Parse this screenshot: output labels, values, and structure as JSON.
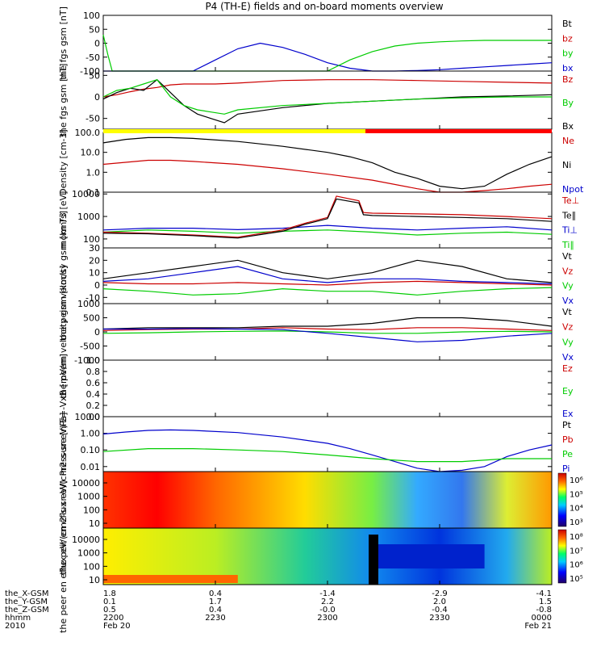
{
  "title": "P4 (TH-E) fields and on-board moments overview",
  "ephemeris": {
    "rows": [
      {
        "label": "the_X-GSM",
        "values": [
          "1.8",
          "0.4",
          "-1.4",
          "-2.9",
          "-4.1"
        ]
      },
      {
        "label": "the_Y-GSM",
        "values": [
          "0.1",
          "1.7",
          "2.2",
          "2.0",
          "1.5"
        ]
      },
      {
        "label": "the_Z-GSM",
        "values": [
          "0.5",
          "0.4",
          "-0.0",
          "-0.4",
          "-0.8"
        ]
      },
      {
        "label": "hhmm",
        "values": [
          "2200",
          "2230",
          "2300",
          "2330",
          "0000"
        ]
      },
      {
        "label": "2010",
        "values": [
          "Feb 20",
          "",
          "",
          "",
          "Feb 21"
        ]
      }
    ]
  },
  "colors": {
    "black": "#000000",
    "red": "#cc0000",
    "green": "#00cc00",
    "blue": "#0000cc",
    "yellow": "#ffff00",
    "redbar": "#ff0000"
  },
  "chart_data": [
    {
      "type": "line",
      "ylabel": "the fgs gsm [nT]",
      "ylim": [
        -100,
        100
      ],
      "ticks": [
        "100",
        "50",
        "0",
        "-50",
        "-100"
      ],
      "tickvalues": [
        100,
        50,
        0,
        -50,
        -100
      ],
      "legend": [
        {
          "name": "Bt",
          "color": "#000000"
        },
        {
          "name": "bz",
          "color": "#cc0000"
        },
        {
          "name": "by",
          "color": "#00cc00"
        },
        {
          "name": "bx",
          "color": "#0000cc"
        }
      ],
      "series": [
        {
          "name": "bx",
          "color": "#0000cc",
          "x": [
            0,
            5,
            10,
            15,
            20,
            25,
            30,
            35,
            40,
            45,
            50,
            55,
            60,
            65,
            70,
            75,
            80,
            85,
            90,
            95,
            100
          ],
          "y": [
            -100,
            -100,
            -100,
            -100,
            -100,
            -60,
            -20,
            0,
            -15,
            -40,
            -70,
            -90,
            -100,
            -100,
            -98,
            -95,
            -90,
            -85,
            -80,
            -75,
            -70
          ]
        },
        {
          "name": "by",
          "color": "#00cc00",
          "x": [
            0,
            1,
            2,
            3,
            10,
            20,
            30,
            40,
            50,
            55,
            60,
            65,
            70,
            75,
            80,
            85,
            90,
            95,
            100
          ],
          "y": [
            30,
            -40,
            -100,
            -100,
            -100,
            -100,
            -100,
            -100,
            -100,
            -60,
            -30,
            -10,
            0,
            5,
            8,
            10,
            10,
            10,
            10
          ]
        }
      ]
    },
    {
      "type": "line",
      "ylabel": "the fgs gsm [nT]",
      "ylim": [
        -75,
        60
      ],
      "ticks": [
        "50",
        "0",
        "-50"
      ],
      "tickvalues": [
        50,
        0,
        -50
      ],
      "legend": [
        {
          "name": "Bz",
          "color": "#cc0000"
        },
        {
          "name": "By",
          "color": "#00cc00"
        },
        {
          "name": "Bx",
          "color": "#000000"
        }
      ],
      "series": [
        {
          "name": "Bz",
          "color": "#cc0000",
          "x": [
            0,
            3,
            6,
            9,
            12,
            15,
            18,
            20,
            25,
            30,
            40,
            50,
            60,
            70,
            80,
            90,
            100
          ],
          "y": [
            0,
            5,
            12,
            18,
            22,
            28,
            30,
            30,
            30,
            32,
            38,
            40,
            40,
            38,
            36,
            34,
            32
          ]
        },
        {
          "name": "Bx",
          "color": "#000000",
          "x": [
            0,
            3,
            6,
            9,
            12,
            15,
            18,
            21,
            24,
            27,
            30,
            40,
            50,
            60,
            70,
            80,
            90,
            100
          ],
          "y": [
            -5,
            10,
            20,
            15,
            40,
            10,
            -20,
            -40,
            -50,
            -60,
            -40,
            -25,
            -15,
            -10,
            -5,
            0,
            2,
            5
          ]
        },
        {
          "name": "By",
          "color": "#00cc00",
          "x": [
            0,
            3,
            6,
            9,
            12,
            15,
            18,
            21,
            24,
            27,
            30,
            40,
            50,
            60,
            70,
            80,
            90,
            100
          ],
          "y": [
            0,
            15,
            20,
            30,
            40,
            0,
            -20,
            -30,
            -35,
            -40,
            -30,
            -20,
            -15,
            -10,
            -5,
            -2,
            0,
            0
          ]
        }
      ]
    },
    {
      "type": "line",
      "ylabel": "Density [cm-3]",
      "scale": "log",
      "ylim": [
        0.1,
        100
      ],
      "ticks": [
        "100.0",
        "10.0",
        "1.0",
        "0.1"
      ],
      "tickvalues": [
        100,
        10,
        1,
        0.1
      ],
      "legend": [
        {
          "name": "Ne",
          "color": "#cc0000"
        },
        {
          "name": "Ni",
          "color": "#000000"
        },
        {
          "name": "Npot",
          "color": "#0000cc"
        }
      ],
      "series": [
        {
          "name": "Ni",
          "color": "#000000",
          "x": [
            0,
            5,
            10,
            15,
            20,
            30,
            40,
            50,
            55,
            60,
            65,
            70,
            75,
            80,
            85,
            90,
            95,
            100
          ],
          "y": [
            30,
            45,
            55,
            55,
            50,
            35,
            20,
            10,
            6,
            3,
            1,
            0.5,
            0.2,
            0.15,
            0.2,
            0.8,
            2.5,
            6
          ]
        },
        {
          "name": "Ne",
          "color": "#cc0000",
          "x": [
            0,
            10,
            15,
            20,
            30,
            40,
            50,
            60,
            70,
            75,
            80,
            85,
            90,
            95,
            100
          ],
          "y": [
            2.5,
            4,
            4,
            3.5,
            2.5,
            1.5,
            0.8,
            0.4,
            0.15,
            0.1,
            0.1,
            0.12,
            0.15,
            0.2,
            0.25
          ]
        }
      ]
    },
    {
      "type": "line",
      "ylabel": "mom T3 [eV]",
      "scale": "log",
      "ylim": [
        40,
        12000
      ],
      "ticks": [
        "10000",
        "1000",
        "100"
      ],
      "tickvalues": [
        10000,
        1000,
        100
      ],
      "legend": [
        {
          "name": "Te⊥",
          "color": "#cc0000"
        },
        {
          "name": "Te∥",
          "color": "#000000"
        },
        {
          "name": "Ti⊥",
          "color": "#0000cc"
        },
        {
          "name": "Ti∥",
          "color": "#00cc00"
        }
      ],
      "series": [
        {
          "name": "Ti⊥",
          "color": "#0000cc",
          "x": [
            0,
            10,
            20,
            30,
            40,
            50,
            60,
            70,
            80,
            90,
            100
          ],
          "y": [
            250,
            300,
            300,
            260,
            300,
            400,
            300,
            250,
            300,
            350,
            250
          ]
        },
        {
          "name": "Ti∥",
          "color": "#00cc00",
          "x": [
            0,
            10,
            20,
            30,
            40,
            50,
            60,
            70,
            80,
            90,
            100
          ],
          "y": [
            200,
            250,
            220,
            180,
            220,
            250,
            200,
            150,
            180,
            200,
            160
          ]
        },
        {
          "name": "Te⊥",
          "color": "#cc0000",
          "x": [
            0,
            10,
            20,
            30,
            40,
            45,
            50,
            52,
            57,
            58,
            60,
            70,
            80,
            90,
            100
          ],
          "y": [
            200,
            180,
            150,
            120,
            250,
            500,
            900,
            8000,
            5000,
            1500,
            1400,
            1300,
            1200,
            1000,
            800
          ]
        },
        {
          "name": "Te∥",
          "color": "#000000",
          "x": [
            0,
            10,
            20,
            30,
            40,
            45,
            50,
            52,
            57,
            58,
            60,
            70,
            80,
            90,
            100
          ],
          "y": [
            180,
            170,
            140,
            110,
            220,
            450,
            800,
            6000,
            4000,
            1200,
            1100,
            1000,
            900,
            800,
            600
          ]
        }
      ]
    },
    {
      "type": "line",
      "ylabel": "the peim velocity gsm [km/s]",
      "ylim": [
        -15,
        30
      ],
      "ticks": [
        "30",
        "20",
        "10",
        "0",
        "-10"
      ],
      "tickvalues": [
        30,
        20,
        10,
        0,
        -10
      ],
      "legend": [
        {
          "name": "Vt",
          "color": "#000000"
        },
        {
          "name": "Vz",
          "color": "#cc0000"
        },
        {
          "name": "Vy",
          "color": "#00cc00"
        },
        {
          "name": "Vx",
          "color": "#0000cc"
        }
      ],
      "series": [
        {
          "name": "Vt",
          "color": "#000000",
          "x": [
            0,
            10,
            20,
            30,
            40,
            50,
            60,
            70,
            80,
            90,
            100
          ],
          "y": [
            5,
            10,
            15,
            20,
            10,
            5,
            10,
            20,
            15,
            5,
            2
          ]
        },
        {
          "name": "Vz",
          "color": "#cc0000",
          "x": [
            0,
            10,
            20,
            30,
            40,
            50,
            60,
            70,
            80,
            90,
            100
          ],
          "y": [
            2,
            1,
            1,
            2,
            1,
            0,
            2,
            3,
            2,
            1,
            0
          ]
        },
        {
          "name": "Vy",
          "color": "#00cc00",
          "x": [
            0,
            10,
            20,
            30,
            40,
            50,
            60,
            70,
            80,
            90,
            100
          ],
          "y": [
            -3,
            -5,
            -8,
            -7,
            -3,
            -5,
            -5,
            -8,
            -5,
            -3,
            -2
          ]
        },
        {
          "name": "Vx",
          "color": "#0000cc",
          "x": [
            0,
            10,
            20,
            30,
            40,
            50,
            60,
            70,
            80,
            90,
            100
          ],
          "y": [
            3,
            5,
            10,
            15,
            5,
            2,
            5,
            5,
            3,
            2,
            1
          ]
        }
      ]
    },
    {
      "type": "line",
      "ylabel": "the peem velocity gsm [km/s]",
      "ylim": [
        -1000,
        1000
      ],
      "ticks": [
        "1000",
        "500",
        "0",
        "-500",
        "-1000"
      ],
      "tickvalues": [
        1000,
        500,
        0,
        -500,
        -1000
      ],
      "legend": [
        {
          "name": "Vt",
          "color": "#000000"
        },
        {
          "name": "Vz",
          "color": "#cc0000"
        },
        {
          "name": "Vy",
          "color": "#00cc00"
        },
        {
          "name": "Vx",
          "color": "#0000cc"
        }
      ],
      "series": [
        {
          "name": "Vt",
          "color": "#000000",
          "x": [
            0,
            10,
            20,
            30,
            40,
            50,
            60,
            70,
            80,
            90,
            100
          ],
          "y": [
            100,
            150,
            150,
            150,
            200,
            200,
            300,
            500,
            500,
            400,
            200
          ]
        },
        {
          "name": "Vz",
          "color": "#cc0000",
          "x": [
            0,
            10,
            20,
            30,
            40,
            50,
            60,
            70,
            80,
            90,
            100
          ],
          "y": [
            50,
            80,
            100,
            100,
            150,
            100,
            80,
            150,
            150,
            100,
            50
          ]
        },
        {
          "name": "Vy",
          "color": "#00cc00",
          "x": [
            0,
            10,
            20,
            30,
            40,
            50,
            60,
            70,
            80,
            90,
            100
          ],
          "y": [
            -50,
            -30,
            0,
            20,
            30,
            0,
            -50,
            -50,
            0,
            20,
            0
          ]
        },
        {
          "name": "Vx",
          "color": "#0000cc",
          "x": [
            0,
            10,
            20,
            30,
            40,
            50,
            60,
            70,
            80,
            90,
            100
          ],
          "y": [
            100,
            100,
            120,
            100,
            80,
            -50,
            -200,
            -350,
            -300,
            -150,
            -50
          ]
        }
      ]
    },
    {
      "type": "line",
      "ylabel": "E=-VxB [mV/m]",
      "ylim": [
        0,
        1
      ],
      "ticks": [
        "1.0",
        "0.8",
        "0.6",
        "0.4",
        "0.2",
        "0.0"
      ],
      "tickvalues": [
        1,
        0.8,
        0.6,
        0.4,
        0.2,
        0
      ],
      "legend": [
        {
          "name": "Ez",
          "color": "#cc0000"
        },
        {
          "name": "Ey",
          "color": "#00cc00"
        },
        {
          "name": "Ex",
          "color": "#0000cc"
        }
      ],
      "series": []
    },
    {
      "type": "line",
      "ylabel": "Pressure [nPa]",
      "scale": "log",
      "ylim": [
        0.005,
        10
      ],
      "ticks": [
        "10.00",
        "1.00",
        "0.10",
        "0.01"
      ],
      "tickvalues": [
        10,
        1,
        0.1,
        0.01
      ],
      "legend": [
        {
          "name": "Pt",
          "color": "#000000"
        },
        {
          "name": "Pb",
          "color": "#cc0000"
        },
        {
          "name": "Pe",
          "color": "#00cc00"
        },
        {
          "name": "Pi",
          "color": "#0000cc"
        }
      ],
      "series": [
        {
          "name": "Pi",
          "color": "#0000cc",
          "x": [
            0,
            5,
            10,
            15,
            20,
            30,
            40,
            50,
            55,
            60,
            65,
            70,
            75,
            80,
            85,
            90,
            95,
            100
          ],
          "y": [
            0.9,
            1.2,
            1.5,
            1.6,
            1.5,
            1.1,
            0.6,
            0.25,
            0.12,
            0.05,
            0.02,
            0.008,
            0.005,
            0.006,
            0.01,
            0.04,
            0.1,
            0.2
          ]
        },
        {
          "name": "Pe",
          "color": "#00cc00",
          "x": [
            0,
            10,
            20,
            30,
            40,
            50,
            60,
            70,
            80,
            90,
            100
          ],
          "y": [
            0.08,
            0.12,
            0.12,
            0.1,
            0.08,
            0.05,
            0.03,
            0.02,
            0.02,
            0.03,
            0.03
          ]
        }
      ]
    },
    {
      "type": "heatmap",
      "ylabel": "the peir en eflux eV/(cm2-s-sr-eV)",
      "ticks": [
        "10000",
        "1000",
        "100",
        "10"
      ],
      "colorbar": {
        "ticks": [
          "10⁶",
          "10⁵",
          "10⁴",
          "10³"
        ]
      }
    },
    {
      "type": "heatmap",
      "ylabel": "the peer en eflux eV/(cm2-s-sr-eV)",
      "ticks": [
        "10000",
        "1000",
        "100",
        "10"
      ],
      "colorbar": {
        "ticks": [
          "10⁸",
          "10⁷",
          "10⁶",
          "10⁵"
        ]
      }
    }
  ]
}
